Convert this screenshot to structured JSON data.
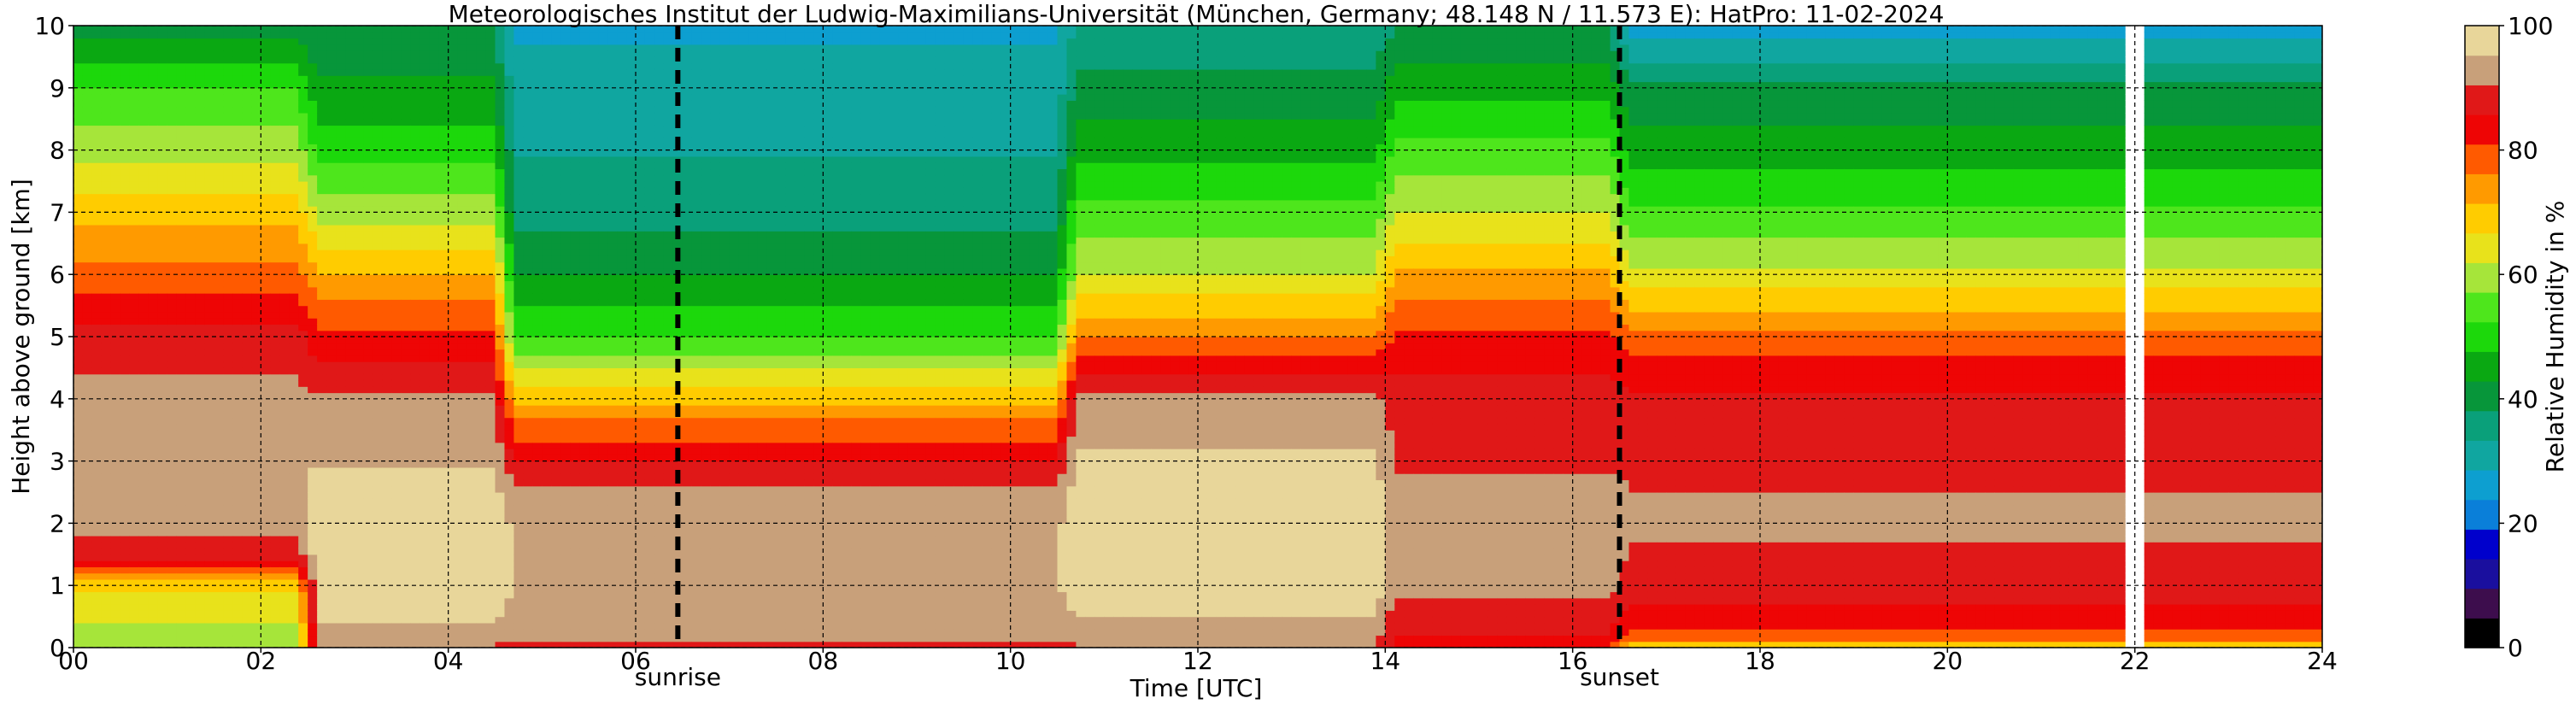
{
  "chart_data": {
    "type": "heatmap",
    "title": "Meteorologisches Institut der Ludwig-Maximilians-Universität (München, Germany; 48.148 N / 11.573 E):    HatPro: 11-02-2024",
    "xlabel": "Time [UTC]",
    "ylabel": "Height above ground [km]",
    "xlim": [
      0,
      24
    ],
    "ylim": [
      0,
      10
    ],
    "x_ticks": [
      0,
      2,
      4,
      6,
      8,
      10,
      12,
      14,
      16,
      18,
      20,
      22,
      24
    ],
    "x_tick_labels": [
      "00",
      "02",
      "04",
      "06",
      "08",
      "10",
      "12",
      "14",
      "16",
      "18",
      "20",
      "22",
      "24"
    ],
    "y_ticks": [
      0,
      1,
      2,
      3,
      4,
      5,
      6,
      7,
      8,
      9,
      10
    ],
    "y_tick_labels": [
      "0",
      "1",
      "2",
      "3",
      "4",
      "5",
      "6",
      "7",
      "8",
      "9",
      "10"
    ],
    "grid": true,
    "colorbar": {
      "label": "Relative Humidity in %",
      "range": [
        0,
        100
      ],
      "ticks": [
        0,
        20,
        40,
        60,
        80,
        100
      ],
      "tick_labels": [
        "0",
        "20",
        "40",
        "60",
        "80",
        "100"
      ],
      "colors": [
        "#000000",
        "#3d0d4d",
        "#1a0f9e",
        "#0000cc",
        "#0a7fd9",
        "#0d9fd0",
        "#10a6a0",
        "#0aa07a",
        "#07963a",
        "#0aa812",
        "#1cd80b",
        "#4ee61c",
        "#a6e53a",
        "#e8e21b",
        "#ffcc00",
        "#ff9a00",
        "#ff5a00",
        "#ee0505",
        "#e01818",
        "#c8a07a",
        "#e8d69a"
      ]
    },
    "markers": [
      {
        "label": "sunrise",
        "x": 6.45
      },
      {
        "label": "sunset",
        "x": 16.5
      }
    ],
    "missing_data_at": [
      22.0
    ],
    "profiles": [
      {
        "t_start": 0.0,
        "t_end": 2.5,
        "rh_at_height_km": {
          "0": 58,
          "0.5": 63,
          "1": 68,
          "1.5": 88,
          "2": 92,
          "3": 95,
          "4": 92,
          "5": 88,
          "6": 78,
          "7": 70,
          "8": 60,
          "9": 52,
          "10": 40
        }
      },
      {
        "t_start": 2.5,
        "t_end": 4.6,
        "rh_at_height_km": {
          "0": 90,
          "0.5": 96,
          "1": 98,
          "2": 99,
          "3": 95,
          "4": 91,
          "5": 82,
          "6": 72,
          "7": 60,
          "8": 50,
          "9": 44,
          "10": 38
        }
      },
      {
        "t_start": 4.6,
        "t_end": 10.6,
        "rh_at_height_km": {
          "0": 86,
          "0.2": 92,
          "1": 95,
          "2": 94,
          "2.6": 91,
          "3": 85,
          "3.6": 78,
          "4": 70,
          "4.6": 60,
          "5": 52,
          "6": 43,
          "7": 36,
          "8": 33,
          "9": 30,
          "10": 28
        }
      },
      {
        "t_start": 10.6,
        "t_end": 14.0,
        "rh_at_height_km": {
          "0": 90,
          "0.5": 95,
          "1": 98,
          "2": 99,
          "3": 96,
          "4": 92,
          "5": 76,
          "6": 62,
          "7": 54,
          "8": 46,
          "9": 40,
          "10": 34
        }
      },
      {
        "t_start": 14.0,
        "t_end": 16.5,
        "rh_at_height_km": {
          "0": 84,
          "1": 92,
          "2": 93,
          "3": 90,
          "4": 88,
          "5": 82,
          "6": 72,
          "7": 62,
          "8": 54,
          "9": 46,
          "10": 38
        }
      },
      {
        "t_start": 16.5,
        "t_end": 24.0,
        "rh_at_height_km": {
          "0": 68,
          "0.2": 80,
          "1": 89,
          "2": 91,
          "3": 90,
          "4": 87,
          "5": 78,
          "6": 63,
          "7": 53,
          "8": 45,
          "9": 39,
          "10": 26
        }
      }
    ]
  }
}
